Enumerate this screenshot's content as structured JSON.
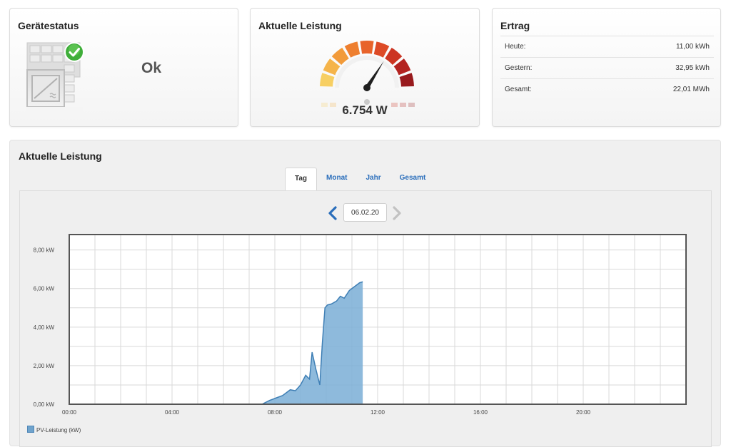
{
  "device_status": {
    "title": "Gerätestatus",
    "status": "Ok"
  },
  "current_power": {
    "title": "Aktuelle Leistung",
    "value": "6.754 W",
    "gauge_fraction": 0.68
  },
  "yield": {
    "title": "Ertrag",
    "rows": [
      {
        "label": "Heute:",
        "value": "11,00 kWh"
      },
      {
        "label": "Gestern:",
        "value": "32,95 kWh"
      },
      {
        "label": "Gesamt:",
        "value": "22,01 MWh"
      }
    ]
  },
  "chart_section": {
    "title": "Aktuelle Leistung",
    "tabs": [
      {
        "label": "Tag",
        "active": true
      },
      {
        "label": "Monat",
        "active": false
      },
      {
        "label": "Jahr",
        "active": false
      },
      {
        "label": "Gesamt",
        "active": false
      }
    ],
    "date_value": "06.02.20",
    "prev_icon": "chevron-left-icon",
    "next_icon": "chevron-right-icon"
  },
  "colors": {
    "accent": "#2a6ebb",
    "series_fill": "#7aaed6",
    "series_line": "#3f7fb5"
  },
  "chart_data": {
    "type": "area",
    "xlim": [
      0,
      24
    ],
    "ylim": [
      0,
      8.8
    ],
    "x_ticks": [
      "00:00",
      "04:00",
      "08:00",
      "12:00",
      "16:00",
      "20:00"
    ],
    "y_ticks": [
      "0,00 kW",
      "2,00 kW",
      "4,00 kW",
      "6,00 kW",
      "8,00 kW"
    ],
    "grid": true,
    "legend_position": "bottom-left",
    "series": [
      {
        "name": "PV-Leistung (kW)",
        "x": [
          0,
          7.5,
          7.8,
          8.0,
          8.3,
          8.6,
          8.8,
          9.0,
          9.2,
          9.35,
          9.45,
          9.6,
          9.75,
          9.85,
          9.95,
          10.05,
          10.2,
          10.4,
          10.55,
          10.7,
          10.9,
          11.1,
          11.3,
          11.42
        ],
        "y": [
          0.0,
          0.0,
          0.2,
          0.3,
          0.45,
          0.75,
          0.7,
          1.0,
          1.5,
          1.3,
          2.7,
          1.8,
          1.0,
          3.2,
          5.0,
          5.15,
          5.2,
          5.35,
          5.6,
          5.5,
          5.9,
          6.1,
          6.3,
          6.35
        ]
      }
    ]
  }
}
